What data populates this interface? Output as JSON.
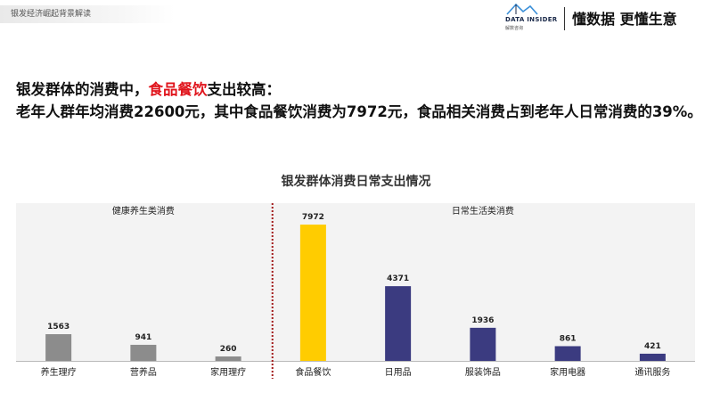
{
  "header": {
    "tab_title": "银发经济崛起背景解读",
    "logo_brand": "DATA INSIDER",
    "logo_sub": "解数咨询",
    "slogan": "懂数据 更懂生意"
  },
  "headline": {
    "line1_prefix": "银发群体的消费中，",
    "line1_highlight": "食品餐饮",
    "line1_suffix": "支出较高：",
    "line2": "老年人群年均消费22600元，其中食品餐饮消费为7972元，食品相关消费占到老年人日常消费的39%。"
  },
  "colors": {
    "accent_red": "#e0151d",
    "bar_gray": "#8c8c8c",
    "bar_yellow": "#ffcc00",
    "bar_navy": "#3b3b80",
    "divider_red": "#a31c1c"
  },
  "chart_data": {
    "type": "bar",
    "title": "银发群体消费日常支出情况",
    "sections": [
      {
        "label": "健康养生类消费",
        "categories": [
          "养生理疗",
          "营养品",
          "家用理疗"
        ]
      },
      {
        "label": "日常生活类消费",
        "categories": [
          "食品餐饮",
          "日用品",
          "服装饰品",
          "家用电器",
          "通讯服务"
        ]
      }
    ],
    "categories": [
      "养生理疗",
      "营养品",
      "家用理疗",
      "食品餐饮",
      "日用品",
      "服装饰品",
      "家用电器",
      "通讯服务"
    ],
    "values": [
      1563,
      941,
      260,
      7972,
      4371,
      1936,
      861,
      421
    ],
    "bar_colors": [
      "#8c8c8c",
      "#8c8c8c",
      "#8c8c8c",
      "#ffcc00",
      "#3b3b80",
      "#3b3b80",
      "#3b3b80",
      "#3b3b80"
    ],
    "ylim": [
      0,
      8600
    ],
    "grid": false,
    "legend": "none"
  }
}
